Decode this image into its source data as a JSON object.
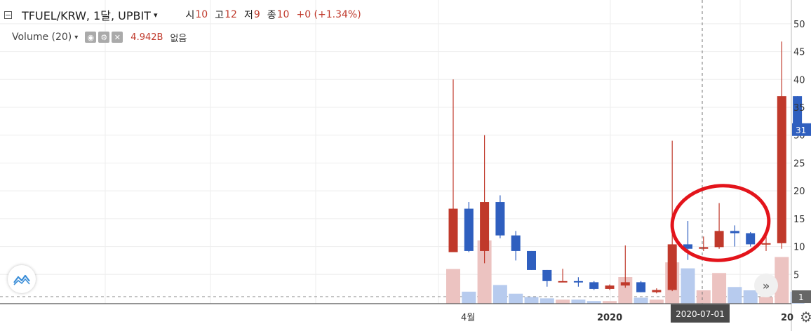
{
  "header": {
    "symbol": "TFUEL/KRW, 1달, UPBIT",
    "ohlc": [
      {
        "label": "시",
        "value": "10"
      },
      {
        "label": "고",
        "value": "12"
      },
      {
        "label": "저",
        "value": "9"
      },
      {
        "label": "종",
        "value": "10"
      }
    ],
    "change": "+0 (+1.34%)"
  },
  "volume_indicator": {
    "label": "Volume (20)",
    "value": "4.942B",
    "status": "없음"
  },
  "crosshair_label": "2020-07-01",
  "colors": {
    "up": "#c0392b",
    "down": "#2f5fbf",
    "vol_up": "#ecc3c1",
    "vol_down": "#b7cbee",
    "grid": "#eeeeee",
    "highlight_circle": "#e3141b"
  },
  "chart_data": {
    "type": "candlestick",
    "title": "TFUEL/KRW, 1달, UPBIT",
    "ylim": [
      0,
      52
    ],
    "y_ticks": [
      "5",
      "10",
      "15",
      "20",
      "25",
      "30",
      "35",
      "40",
      "45",
      "50"
    ],
    "x_ticks": [
      "4월",
      "2020",
      "20"
    ],
    "price_labels": {
      "current": "31",
      "reference": "1"
    },
    "reference_level": 1,
    "candles": [
      {
        "o": 9.0,
        "h": 40.0,
        "l": 9.0,
        "c": 16.8
      },
      {
        "o": 16.8,
        "h": 18.0,
        "l": 9.0,
        "c": 9.2
      },
      {
        "o": 9.2,
        "h": 30.0,
        "l": 7.0,
        "c": 18.0
      },
      {
        "o": 18.0,
        "h": 19.2,
        "l": 11.5,
        "c": 12.0
      },
      {
        "o": 12.0,
        "h": 12.8,
        "l": 7.5,
        "c": 9.2
      },
      {
        "o": 9.2,
        "h": 9.2,
        "l": 5.8,
        "c": 5.8
      },
      {
        "o": 5.8,
        "h": 5.8,
        "l": 2.8,
        "c": 3.8
      },
      {
        "o": 3.6,
        "h": 6.0,
        "l": 3.6,
        "c": 3.8
      },
      {
        "o": 3.8,
        "h": 4.5,
        "l": 2.8,
        "c": 3.6
      },
      {
        "o": 3.6,
        "h": 3.8,
        "l": 2.2,
        "c": 2.4
      },
      {
        "o": 2.4,
        "h": 3.2,
        "l": 2.2,
        "c": 3.0
      },
      {
        "o": 3.0,
        "h": 10.2,
        "l": 2.6,
        "c": 3.6
      },
      {
        "o": 3.6,
        "h": 3.8,
        "l": 1.8,
        "c": 1.8
      },
      {
        "o": 1.8,
        "h": 2.5,
        "l": 1.6,
        "c": 2.2
      },
      {
        "o": 2.2,
        "h": 29.0,
        "l": 2.0,
        "c": 10.4
      },
      {
        "o": 10.4,
        "h": 14.6,
        "l": 7.6,
        "c": 9.6
      },
      {
        "o": 9.6,
        "h": 11.8,
        "l": 9.2,
        "c": 9.9
      },
      {
        "o": 9.9,
        "h": 17.8,
        "l": 9.6,
        "c": 12.8
      },
      {
        "o": 12.8,
        "h": 13.8,
        "l": 10.0,
        "c": 12.4
      },
      {
        "o": 12.4,
        "h": 12.6,
        "l": 10.0,
        "c": 10.4
      },
      {
        "o": 10.4,
        "h": 11.8,
        "l": 9.2,
        "c": 10.6
      },
      {
        "o": 10.6,
        "h": 46.8,
        "l": 9.6,
        "c": 37.0
      },
      {
        "o": 37.0,
        "h": 37.0,
        "l": 30.2,
        "c": 31.0
      }
    ],
    "volume_max": 100,
    "volumes": [
      52,
      18,
      95,
      28,
      15,
      10,
      8,
      6,
      6,
      4,
      4,
      40,
      9,
      6,
      62,
      53,
      20,
      46,
      25,
      20,
      10,
      70,
      18
    ]
  }
}
